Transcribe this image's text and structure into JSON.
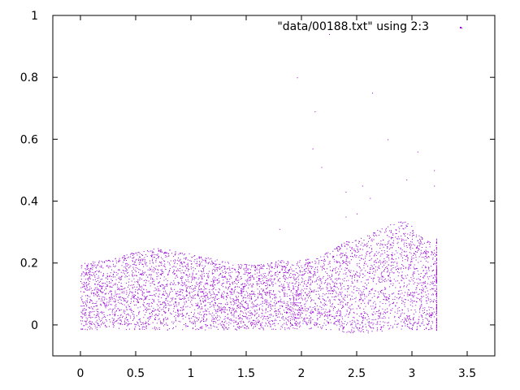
{
  "chart_data": {
    "type": "scatter",
    "title": "",
    "xlabel": "",
    "ylabel": "",
    "xlim": [
      -0.25,
      3.75
    ],
    "ylim": [
      -0.1,
      1.0
    ],
    "xticks": [
      0,
      0.5,
      1,
      1.5,
      2,
      2.5,
      3,
      3.5
    ],
    "xtick_labels": [
      "0",
      "0.5",
      "1",
      "1.5",
      "2",
      "2.5",
      "3",
      "3.5"
    ],
    "yticks": [
      0,
      0.2,
      0.4,
      0.6,
      0.8,
      1
    ],
    "ytick_labels": [
      "0",
      "0.2",
      "0.4",
      "0.6",
      "0.8",
      "1"
    ],
    "grid": false,
    "legend": {
      "position": "top-right"
    },
    "series": [
      {
        "name": "\"data/00188.txt\" using 2:3",
        "color": "#9400d3",
        "x_range": [
          0,
          3.22
        ],
        "y_baseline": 0.0,
        "upper_envelope": {
          "x": [
            0,
            0.2,
            0.4,
            0.55,
            0.7,
            0.8,
            1.0,
            1.2,
            1.4,
            1.6,
            1.7,
            1.8,
            2.0,
            2.15,
            2.3,
            2.4,
            2.5,
            2.6,
            2.7,
            2.8,
            2.9,
            3.0,
            3.1,
            3.2
          ],
          "y": [
            0.2,
            0.21,
            0.23,
            0.24,
            0.25,
            0.245,
            0.23,
            0.215,
            0.2,
            0.195,
            0.2,
            0.21,
            0.21,
            0.22,
            0.25,
            0.27,
            0.28,
            0.29,
            0.31,
            0.33,
            0.345,
            0.32,
            0.28,
            0.26
          ]
        },
        "outliers": [
          {
            "x": 1.96,
            "y": 0.8
          },
          {
            "x": 2.12,
            "y": 0.69
          },
          {
            "x": 2.1,
            "y": 0.57
          },
          {
            "x": 2.18,
            "y": 0.51
          },
          {
            "x": 2.25,
            "y": 0.94
          },
          {
            "x": 2.4,
            "y": 0.43
          },
          {
            "x": 2.55,
            "y": 0.45
          },
          {
            "x": 2.62,
            "y": 0.41
          },
          {
            "x": 2.64,
            "y": 0.75
          },
          {
            "x": 2.78,
            "y": 0.6
          },
          {
            "x": 2.95,
            "y": 0.47
          },
          {
            "x": 3.05,
            "y": 0.56
          },
          {
            "x": 3.2,
            "y": 0.5
          },
          {
            "x": 3.2,
            "y": 0.45
          },
          {
            "x": 3.45,
            "y": 0.96
          },
          {
            "x": 1.8,
            "y": 0.31
          },
          {
            "x": 2.4,
            "y": 0.35
          },
          {
            "x": 2.5,
            "y": 0.36
          }
        ]
      }
    ]
  }
}
